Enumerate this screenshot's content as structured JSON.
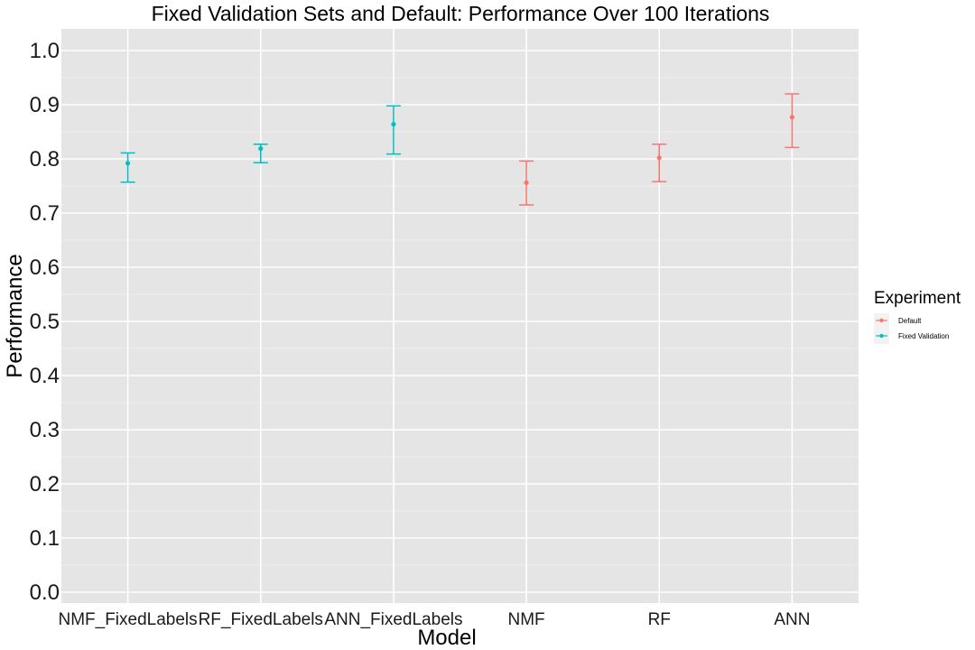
{
  "chart_data": {
    "type": "scatter",
    "title": "Fixed Validation Sets and Default: Performance Over 100 Iterations",
    "xlabel": "Model",
    "ylabel": "Performance",
    "categories": [
      "NMF_FixedLabels",
      "RF_FixedLabels",
      "ANN_FixedLabels",
      "NMF",
      "RF",
      "ANN"
    ],
    "ylim": [
      -0.02,
      1.04
    ],
    "yticks": [
      "0.0",
      "0.1",
      "0.2",
      "0.3",
      "0.4",
      "0.5",
      "0.6",
      "0.7",
      "0.8",
      "0.9",
      "1.0"
    ],
    "grid": true,
    "legend": {
      "title": "Experiment",
      "position": "right"
    },
    "series": [
      {
        "name": "Default",
        "color": "#F8766D",
        "points": [
          {
            "x": "NMF",
            "y": 0.756,
            "ymin": 0.715,
            "ymax": 0.796
          },
          {
            "x": "RF",
            "y": 0.802,
            "ymin": 0.758,
            "ymax": 0.827
          },
          {
            "x": "ANN",
            "y": 0.877,
            "ymin": 0.821,
            "ymax": 0.92
          }
        ]
      },
      {
        "name": "Fixed Validation",
        "color": "#00BFC4",
        "points": [
          {
            "x": "NMF_FixedLabels",
            "y": 0.792,
            "ymin": 0.757,
            "ymax": 0.811
          },
          {
            "x": "RF_FixedLabels",
            "y": 0.819,
            "ymin": 0.793,
            "ymax": 0.827
          },
          {
            "x": "ANN_FixedLabels",
            "y": 0.864,
            "ymin": 0.809,
            "ymax": 0.898
          }
        ]
      }
    ]
  }
}
